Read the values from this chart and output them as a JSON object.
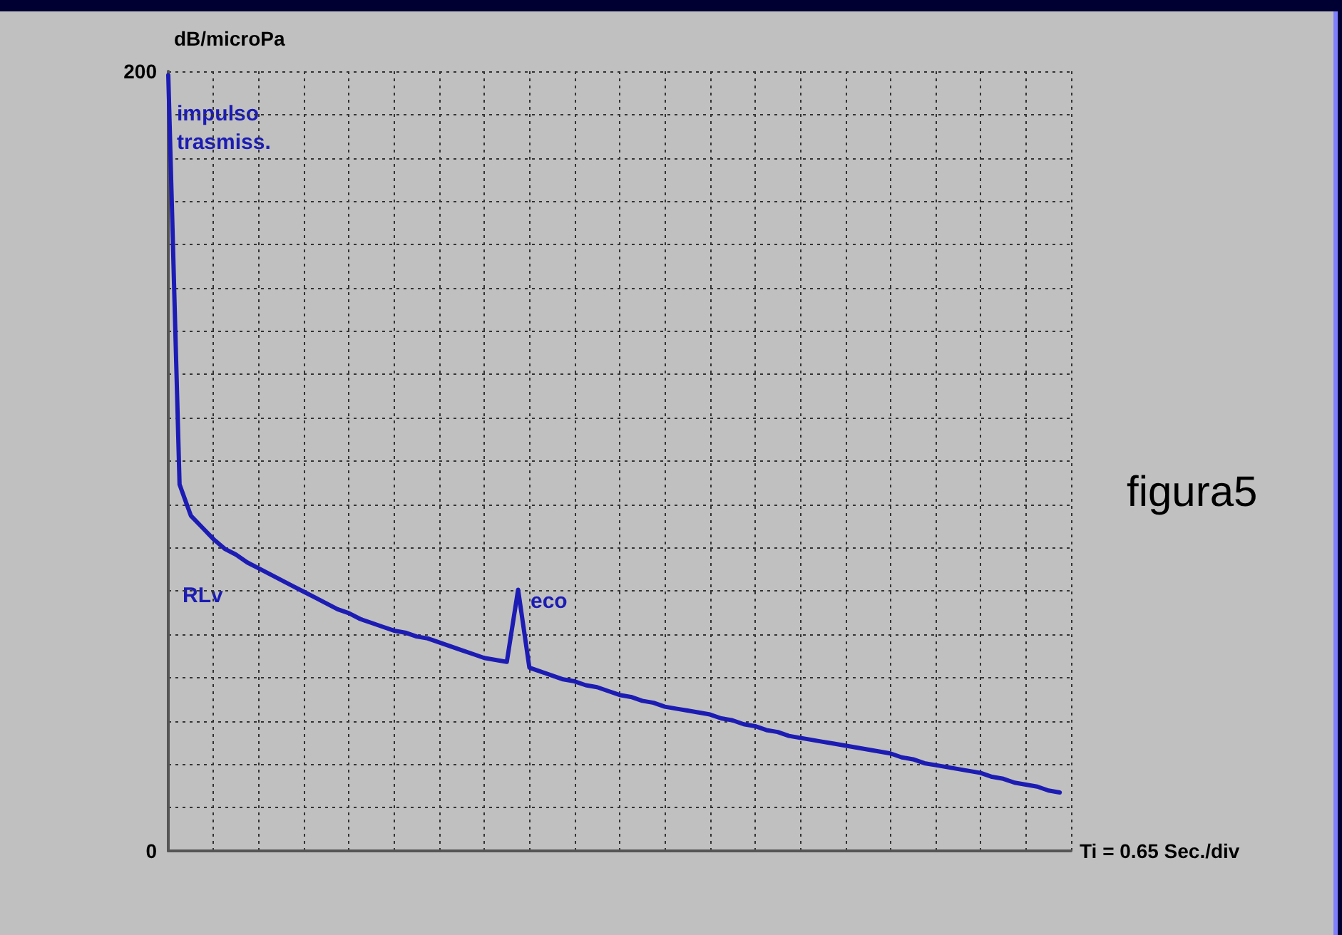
{
  "chart_data": {
    "type": "line",
    "xlabel": "Ti = 0.65 Sec./div",
    "ylabel": "dB/microPa",
    "categories": [
      null,
      null,
      null,
      null,
      null,
      null,
      null,
      null,
      null,
      null,
      null,
      null,
      null,
      null,
      null,
      null,
      null,
      null,
      null,
      null,
      null,
      null,
      null,
      null,
      null,
      null,
      null,
      null,
      null,
      null,
      null,
      null,
      null,
      null,
      null,
      null,
      null,
      null,
      null,
      null,
      null,
      null,
      null,
      null,
      null,
      null,
      null,
      null,
      null,
      null,
      null,
      null,
      null,
      null,
      null,
      null,
      null,
      null,
      null,
      null,
      null,
      null,
      null,
      null,
      null,
      null,
      null,
      null,
      null,
      null,
      null,
      null,
      null,
      null,
      null,
      null,
      null,
      null,
      null,
      null,
      null
    ],
    "series": [
      {
        "color": "#1c1cb4",
        "values": [
          199,
          94,
          86,
          83,
          80,
          77.5,
          76,
          74,
          72.5,
          71,
          69.5,
          68,
          66.5,
          65,
          63.5,
          62,
          61,
          59.5,
          58.5,
          57.5,
          56.5,
          56,
          55,
          54.5,
          53.5,
          52.5,
          51.5,
          50.5,
          49.5,
          49,
          48.5,
          67,
          47,
          46,
          45,
          44,
          43.5,
          42.5,
          42,
          41,
          40,
          39.5,
          38.5,
          38,
          37,
          36.5,
          36,
          35.5,
          35,
          34,
          33.5,
          32.5,
          32,
          31,
          30.5,
          29.5,
          29,
          28.5,
          28,
          27.5,
          27,
          26.5,
          26,
          25.5,
          25,
          24,
          23.5,
          22.5,
          22,
          21.5,
          21,
          20.5,
          20,
          19,
          18.5,
          17.5,
          17,
          16.5,
          15.5,
          15,
          null
        ]
      }
    ],
    "ylim": [
      0,
      200
    ],
    "yticks": [
      0,
      {
        "value": 11.11,
        "label": null
      },
      {
        "value": 22.22,
        "label": null
      },
      {
        "value": 33.33,
        "label": null
      },
      {
        "value": 44.44,
        "label": null
      },
      {
        "value": 55.56,
        "label": null
      },
      {
        "value": 66.67,
        "label": null
      },
      {
        "value": 77.78,
        "label": null
      },
      {
        "value": 88.89,
        "label": null
      },
      {
        "value": 100,
        "label": null
      },
      {
        "value": 111.11,
        "label": null
      },
      {
        "value": 122.22,
        "label": null
      },
      {
        "value": 133.33,
        "label": null
      },
      {
        "value": 144.44,
        "label": null
      },
      {
        "value": 155.56,
        "label": null
      },
      {
        "value": 166.67,
        "label": null
      },
      {
        "value": 177.78,
        "label": null
      },
      {
        "value": 188.89,
        "label": null
      },
      200
    ],
    "tick_labels": "y",
    "grid": true,
    "line_style": "solid",
    "annotations": [
      "impulso\ntrasmiss.",
      "RLv",
      "eco",
      "figura5"
    ]
  }
}
